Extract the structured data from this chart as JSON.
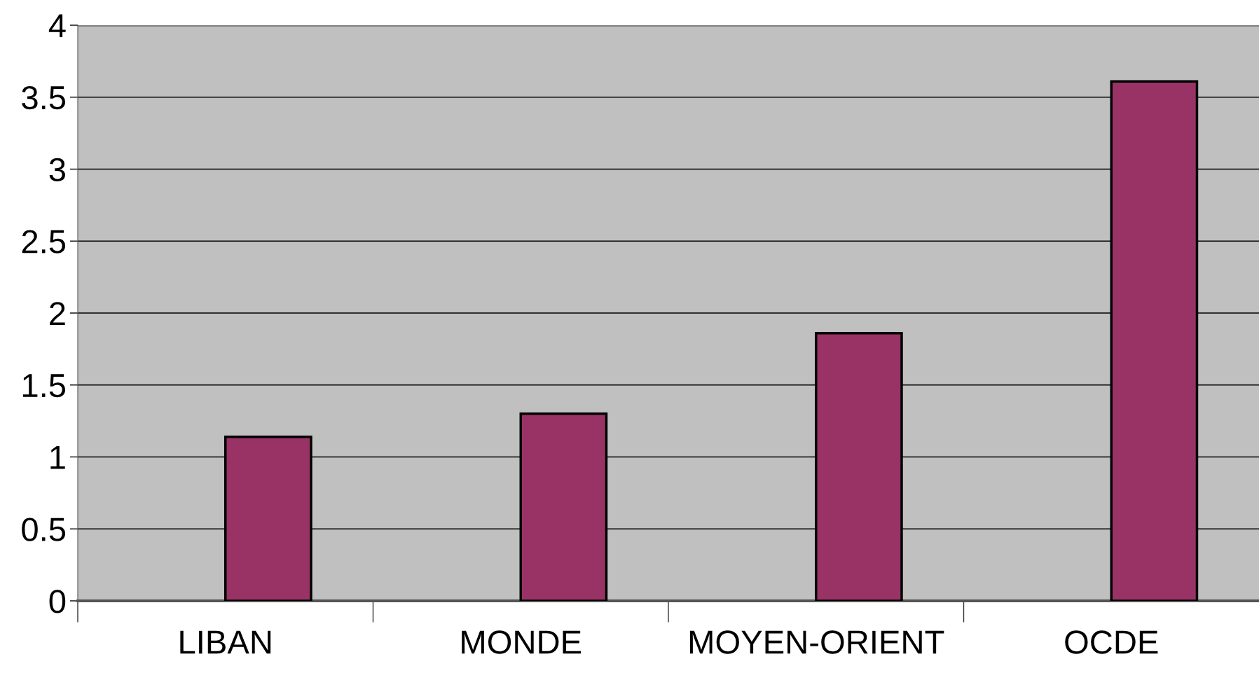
{
  "chart_data": {
    "type": "bar",
    "categories": [
      "LIBAN",
      "MONDE",
      "MOYEN-ORIENT",
      "OCDE"
    ],
    "values": [
      1.14,
      1.3,
      1.86,
      3.61
    ],
    "color": "#993366",
    "ylim": [
      0,
      4
    ],
    "yticks": [
      0,
      0.5,
      1,
      1.5,
      2,
      2.5,
      3,
      3.5,
      4
    ],
    "grid": "y"
  }
}
